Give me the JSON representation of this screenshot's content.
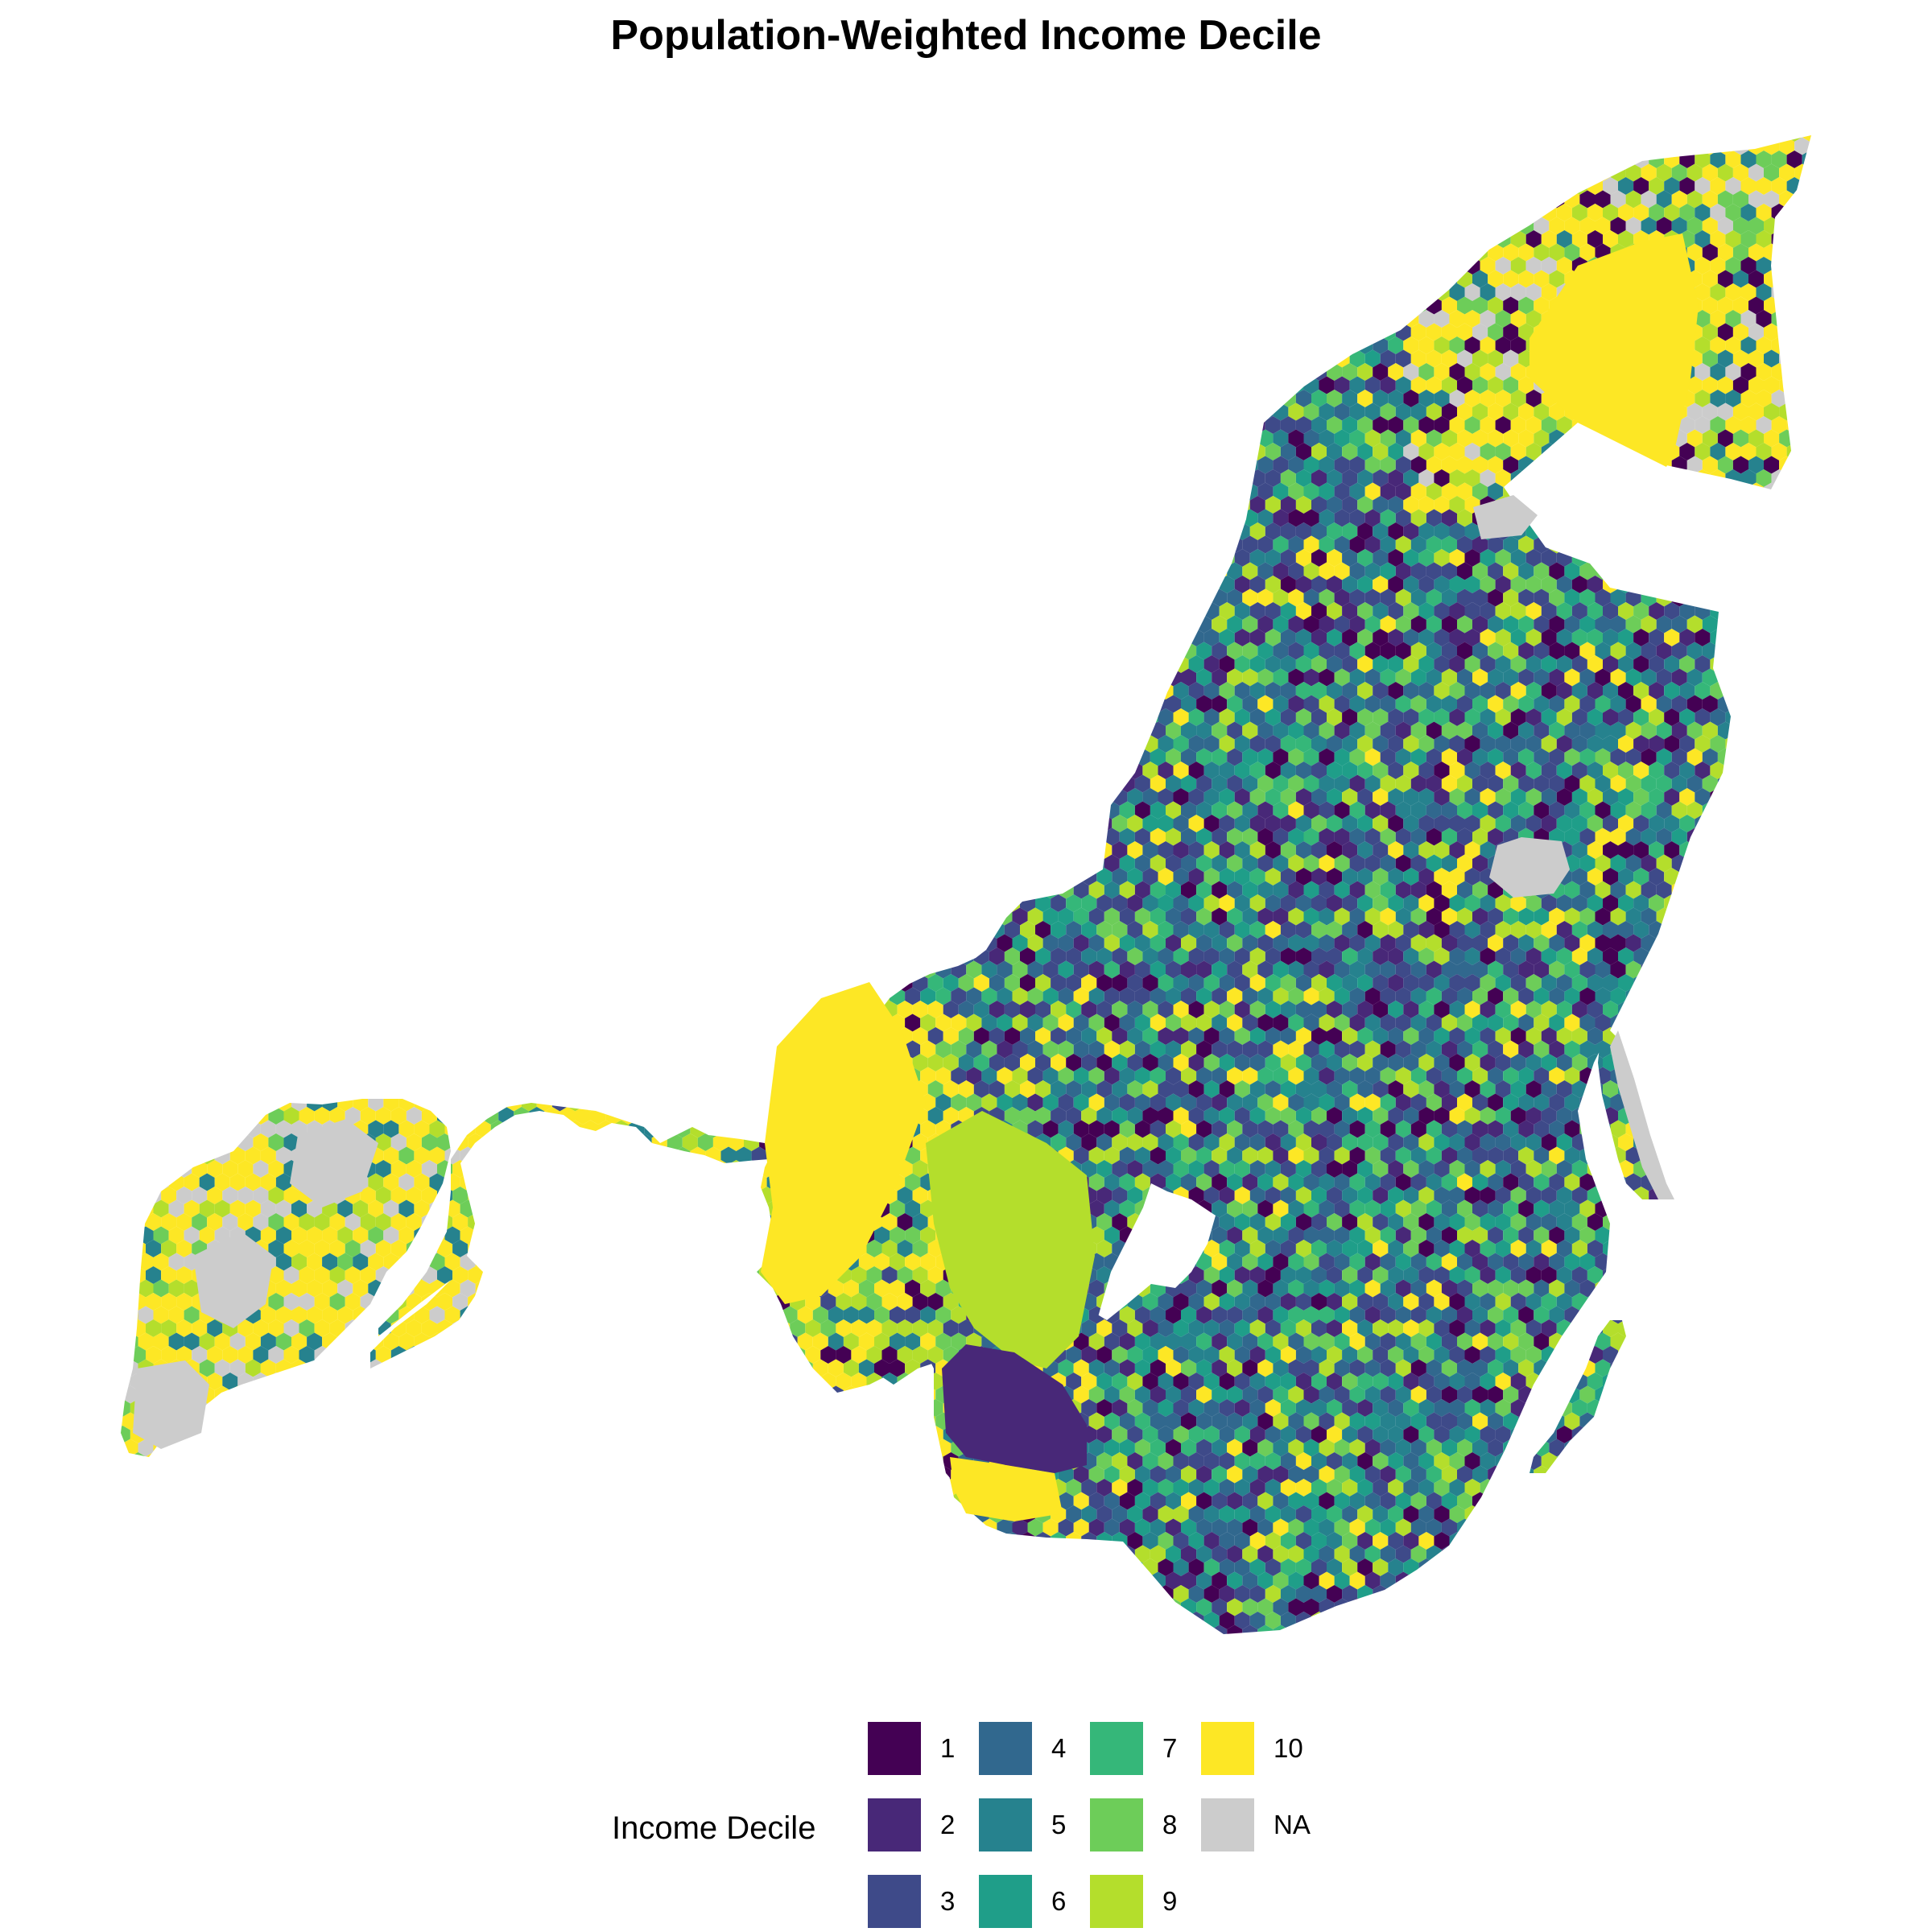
{
  "title": "Population-Weighted Income Decile",
  "legend": {
    "title": "Income Decile",
    "items": [
      {
        "label": "1",
        "color": "#440154"
      },
      {
        "label": "2",
        "color": "#482878"
      },
      {
        "label": "3",
        "color": "#3E4A89"
      },
      {
        "label": "4",
        "color": "#31688E"
      },
      {
        "label": "5",
        "color": "#26828E"
      },
      {
        "label": "6",
        "color": "#1F9E89"
      },
      {
        "label": "7",
        "color": "#35B779"
      },
      {
        "label": "8",
        "color": "#6DCD59"
      },
      {
        "label": "9",
        "color": "#B4DE2C"
      },
      {
        "label": "10",
        "color": "#FDE725"
      },
      {
        "label": "NA",
        "color": "#CCCCCC"
      }
    ]
  }
}
